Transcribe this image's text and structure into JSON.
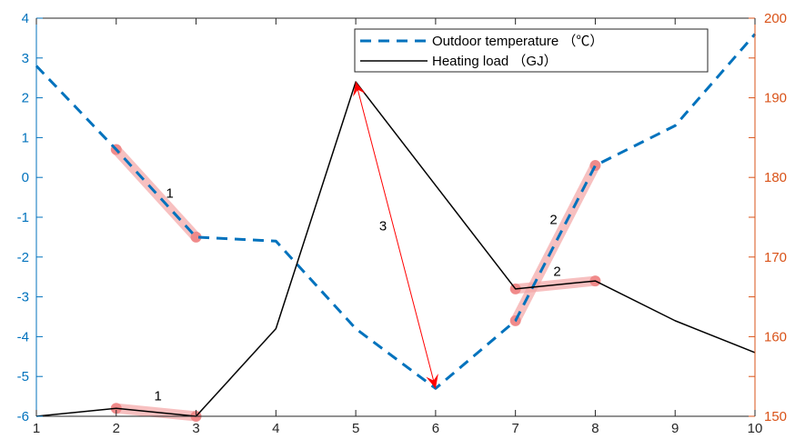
{
  "chart_data": {
    "type": "line",
    "x": [
      1,
      2,
      3,
      4,
      5,
      6,
      7,
      8,
      9,
      10
    ],
    "xlim": [
      1,
      10
    ],
    "x_ticks": [
      "1",
      "2",
      "3",
      "4",
      "5",
      "6",
      "7",
      "8",
      "9",
      "10"
    ],
    "y_left": {
      "lim": [
        -6,
        4
      ],
      "ticks": [
        "4",
        "3",
        "2",
        "1",
        "0",
        "-1",
        "-2",
        "-3",
        "-4",
        "-5",
        "-6"
      ],
      "color": "#0072BD"
    },
    "y_right": {
      "lim": [
        150,
        200
      ],
      "ticks": [
        "200",
        "190",
        "180",
        "170",
        "160",
        "150"
      ],
      "color": "#D95319"
    },
    "series": [
      {
        "name": "Outdoor temperature （℃）",
        "axis": "left",
        "style": "dashed",
        "color": "#0072BD",
        "values": [
          2.8,
          0.7,
          -1.5,
          -1.6,
          -3.8,
          -5.3,
          -3.6,
          0.3,
          1.3,
          3.6
        ]
      },
      {
        "name": "Heating load （GJ）",
        "axis": "right",
        "style": "solid",
        "color": "#000000",
        "values": [
          150,
          151,
          150,
          161,
          192,
          179,
          166,
          167,
          162,
          158
        ]
      }
    ],
    "highlights": [
      {
        "label": "1",
        "series": 0,
        "from": 2,
        "to": 3
      },
      {
        "label": "1",
        "series": 1,
        "from": 2,
        "to": 3
      },
      {
        "label": "2",
        "series": 0,
        "from": 7,
        "to": 8
      },
      {
        "label": "2",
        "series": 1,
        "from": 7,
        "to": 8
      }
    ],
    "arrow": {
      "label": "3",
      "from": [
        5,
        2.4
      ],
      "to": [
        6,
        -5.3
      ],
      "color": "#FF0000"
    },
    "legend_position": "top-right",
    "grid": false
  }
}
